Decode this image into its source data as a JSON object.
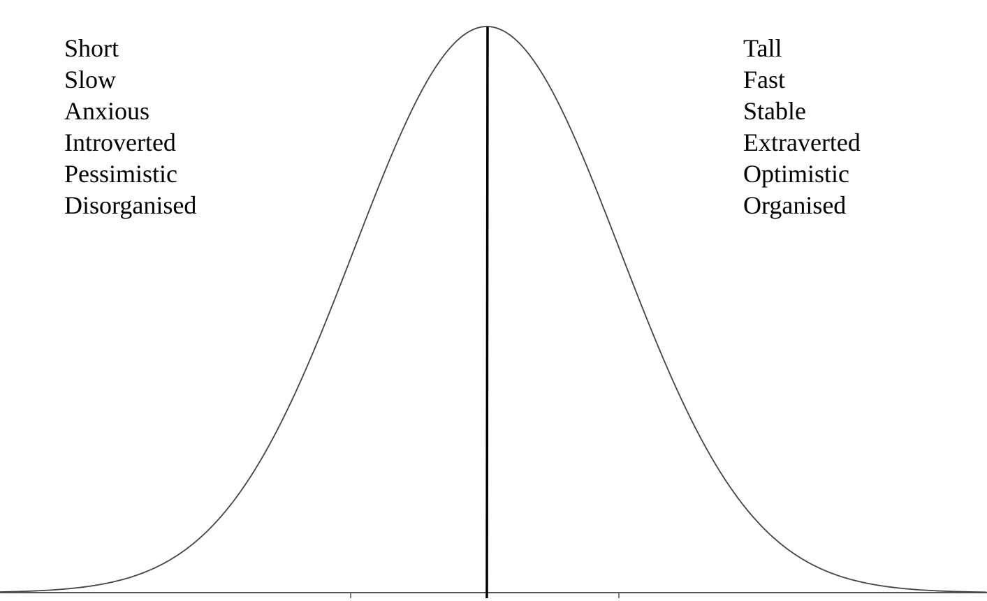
{
  "diagram": {
    "type": "normal-distribution",
    "curve_color": "#444444",
    "axis_color": "#555555",
    "center_line_color": "#000000",
    "background": "#ffffff",
    "left_traits": [
      "Short",
      "Slow",
      "Anxious",
      "Introverted",
      "Pessimistic",
      "Disorganised"
    ],
    "right_traits": [
      "Tall",
      "Fast",
      "Stable",
      "Extraverted",
      "Optimistic",
      "Organised"
    ]
  }
}
